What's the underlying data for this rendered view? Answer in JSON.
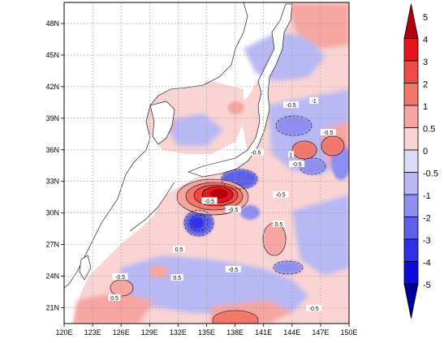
{
  "chart_data": {
    "type": "heatmap",
    "title": "",
    "xlabel": "",
    "ylabel": "",
    "x_ticks": [
      "120E",
      "123E",
      "126E",
      "129E",
      "132E",
      "135E",
      "138E",
      "141E",
      "144E",
      "147E",
      "150E"
    ],
    "y_ticks": [
      "21N",
      "24N",
      "27N",
      "30N",
      "33N",
      "36N",
      "39N",
      "42N",
      "45N",
      "48N"
    ],
    "xlim": [
      120,
      150
    ],
    "ylim": [
      19.5,
      50
    ],
    "grid": true,
    "colorbar": {
      "labels": [
        "5",
        "4",
        "3",
        "2",
        "1",
        "0.5",
        "0",
        "-0.5",
        "-1",
        "-2",
        "-3",
        "-4",
        "-5"
      ],
      "levels": [
        5,
        4,
        3,
        2,
        1,
        0.5,
        0,
        -0.5,
        -1,
        -2,
        -3,
        -4,
        -5
      ],
      "colors": [
        "#b3000e",
        "#e8141d",
        "#f14a42",
        "#f3766b",
        "#f6a5a0",
        "#f9d4d3",
        "#dcdcf7",
        "#b7b8f4",
        "#8d8ef0",
        "#5f60ea",
        "#2f30e6",
        "#0b0bdd",
        "#000099"
      ],
      "extend": "both"
    },
    "contour_labels": [
      {
        "text": "-0.5",
        "lon": 143.9,
        "lat": 40.2
      },
      {
        "text": "-1",
        "lon": 146.3,
        "lat": 40.6
      },
      {
        "text": "-0.5",
        "lon": 147.8,
        "lat": 37.6
      },
      {
        "text": "-0.5",
        "lon": 140.2,
        "lat": 35.7
      },
      {
        "text": "-0.5",
        "lon": 144.5,
        "lat": 34.6
      },
      {
        "text": "1",
        "lon": 143.9,
        "lat": 35.5
      },
      {
        "text": "-0.5",
        "lon": 142.8,
        "lat": 31.7
      },
      {
        "text": "-0.5",
        "lon": 135.3,
        "lat": 31.1
      },
      {
        "text": "-0.5",
        "lon": 137.8,
        "lat": 30.3
      },
      {
        "text": "0.5",
        "lon": 142.6,
        "lat": 28.9
      },
      {
        "text": "0.5",
        "lon": 132.1,
        "lat": 26.5
      },
      {
        "text": "-0.5",
        "lon": 137.8,
        "lat": 24.6
      },
      {
        "text": "-0.5",
        "lon": 125.9,
        "lat": 23.9
      },
      {
        "text": "0.5",
        "lon": 131.9,
        "lat": 23.8
      },
      {
        "text": "0.5",
        "lon": 125.3,
        "lat": 21.9
      },
      {
        "text": "-0.5",
        "lon": 146.3,
        "lat": 20.9
      }
    ]
  }
}
